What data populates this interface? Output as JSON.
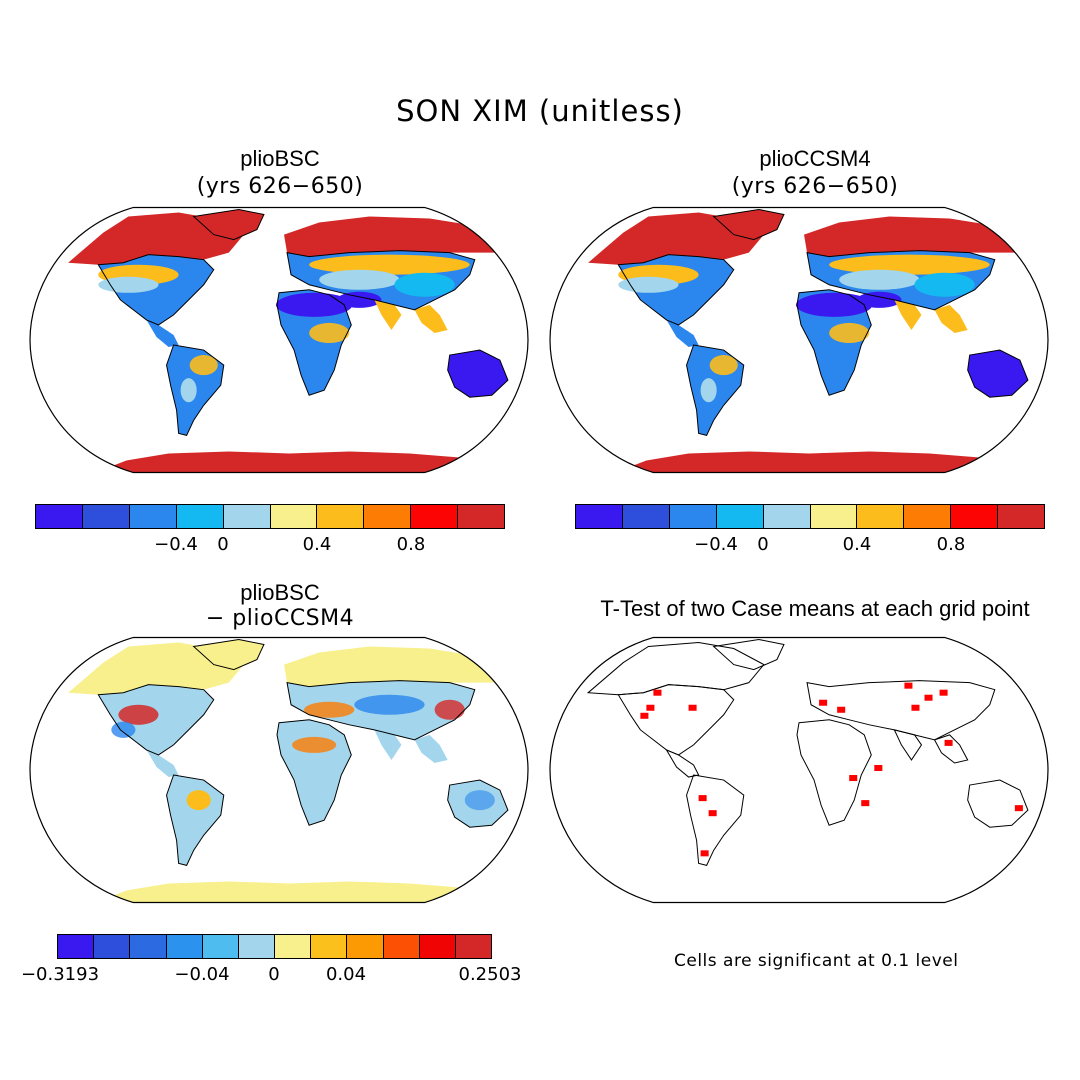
{
  "figure": {
    "title": "SON XIM (unitless)"
  },
  "panels": [
    {
      "id": "bsc",
      "title": "plioBSC",
      "subtitle": "(yrs 626−650)",
      "type": "mean"
    },
    {
      "id": "ccsm4",
      "title": "plioCCSM4",
      "subtitle": "(yrs 626−650)",
      "type": "mean"
    },
    {
      "id": "diff",
      "title": "plioBSC",
      "subtitle": "− plioCCSM4",
      "type": "difference"
    },
    {
      "id": "ttest",
      "title": "T-Test of two Case means at each grid point",
      "subtitle": "",
      "type": "significance",
      "note": "Cells are significant at 0.1 level"
    }
  ],
  "colorbars": {
    "mean": {
      "colors": [
        "#3a18f0",
        "#2e4fdc",
        "#2b86ee",
        "#13b9f0",
        "#a3d6ec",
        "#f8f08c",
        "#fcbc1c",
        "#fc7c04",
        "#fc0404",
        "#d42828"
      ],
      "ticks": [
        "−0.4",
        "0",
        "0.4",
        "0.8"
      ]
    },
    "diff": {
      "colors": [
        "#3a18f0",
        "#2e4fdc",
        "#2b6ae0",
        "#2b93ee",
        "#4fbcf0",
        "#a3d6ec",
        "#f8f08c",
        "#fcc01c",
        "#fc9a04",
        "#fc5004",
        "#f00404",
        "#d42828"
      ],
      "ticks": [
        "−0.3193",
        "−0.04",
        "0",
        "0.04",
        "0.2503"
      ]
    }
  },
  "map_colors": {
    "arctic": "#d42828",
    "boreal": "#fc7c04",
    "temperate": "#fcbc1c",
    "light": "#a3d6ec",
    "mid": "#13b9f0",
    "blue": "#2b86ee",
    "dry": "#3a18f0",
    "ocean": "#ffffff",
    "diff_neutral": "#f8f08c",
    "sig": "#ff0000"
  }
}
